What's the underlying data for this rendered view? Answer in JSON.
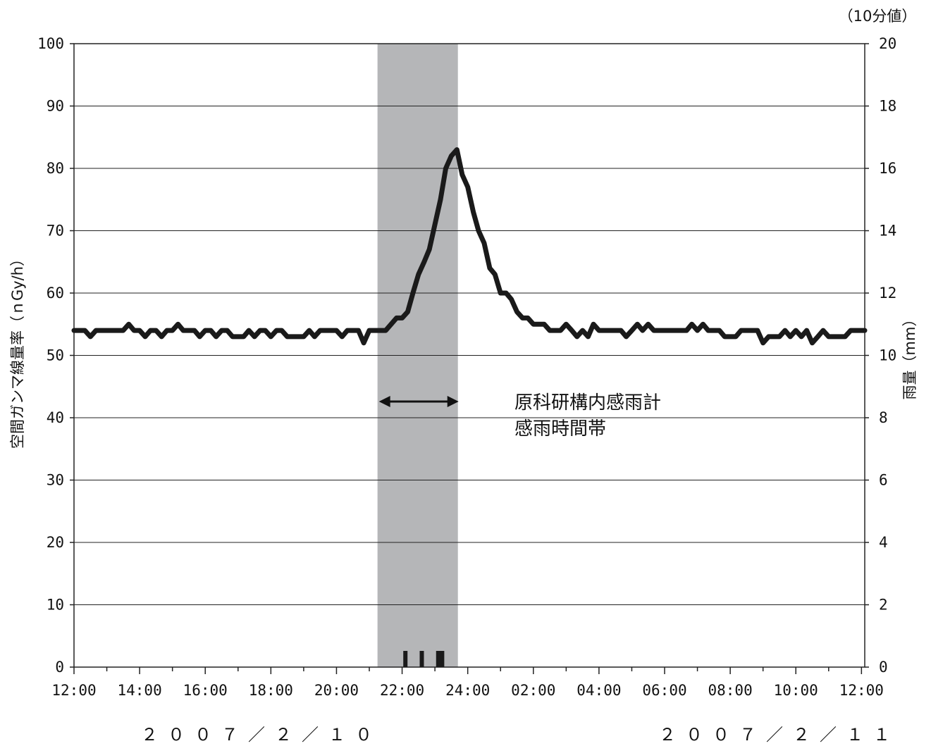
{
  "chart_data": {
    "type": "line",
    "left_axis": {
      "label": "空間ガンマ線量率（ｎGy/h）",
      "ylim": [
        0,
        100
      ],
      "ticks": [
        "0",
        "10",
        "20",
        "30",
        "40",
        "50",
        "60",
        "70",
        "80",
        "90",
        "100"
      ]
    },
    "right_axis": {
      "label": "雨量（mm）",
      "unit_note": "（10分値）",
      "ylim": [
        0,
        20
      ],
      "ticks": [
        "0",
        "2",
        "4",
        "6",
        "8",
        "10",
        "12",
        "14",
        "16",
        "18",
        "20"
      ]
    },
    "x_axis": {
      "range_hours": [
        12,
        36.1
      ],
      "ticks": [
        "12:00",
        "14:00",
        "16:00",
        "18:00",
        "20:00",
        "22:00",
        "24:00",
        "02:00",
        "04:00",
        "06:00",
        "08:00",
        "10:00",
        "12:00"
      ],
      "dates": [
        "２００７／２／１０",
        "２００７／２／１１"
      ]
    },
    "grid": true,
    "rain_period": {
      "start": 21.25,
      "end": 23.7
    },
    "annotation": [
      "原科研構内感雨計",
      "感雨時間帯"
    ],
    "series": [
      {
        "values": [
          [
            12.0,
            54
          ],
          [
            12.33,
            54
          ],
          [
            12.5,
            53
          ],
          [
            12.67,
            54
          ],
          [
            13.5,
            54
          ],
          [
            13.67,
            55
          ],
          [
            13.83,
            54
          ],
          [
            14.0,
            54
          ],
          [
            14.17,
            53
          ],
          [
            14.33,
            54
          ],
          [
            14.5,
            54
          ],
          [
            14.67,
            53
          ],
          [
            14.83,
            54
          ],
          [
            15.0,
            54
          ],
          [
            15.17,
            55
          ],
          [
            15.33,
            54
          ],
          [
            15.67,
            54
          ],
          [
            15.83,
            53
          ],
          [
            16.0,
            54
          ],
          [
            16.17,
            54
          ],
          [
            16.33,
            53
          ],
          [
            16.5,
            54
          ],
          [
            16.67,
            54
          ],
          [
            16.83,
            53
          ],
          [
            17.17,
            53
          ],
          [
            17.33,
            54
          ],
          [
            17.5,
            53
          ],
          [
            17.67,
            54
          ],
          [
            17.83,
            54
          ],
          [
            18.0,
            53
          ],
          [
            18.17,
            54
          ],
          [
            18.33,
            54
          ],
          [
            18.5,
            53
          ],
          [
            19.0,
            53
          ],
          [
            19.17,
            54
          ],
          [
            19.33,
            53
          ],
          [
            19.5,
            54
          ],
          [
            20.0,
            54
          ],
          [
            20.17,
            53
          ],
          [
            20.33,
            54
          ],
          [
            20.67,
            54
          ],
          [
            20.83,
            52
          ],
          [
            21.0,
            54
          ],
          [
            21.5,
            54
          ],
          [
            21.83,
            56
          ],
          [
            22.0,
            56
          ],
          [
            22.17,
            57
          ],
          [
            22.33,
            60
          ],
          [
            22.5,
            63
          ],
          [
            22.67,
            65
          ],
          [
            22.83,
            67
          ],
          [
            23.0,
            71
          ],
          [
            23.17,
            75
          ],
          [
            23.33,
            80
          ],
          [
            23.5,
            82
          ],
          [
            23.67,
            83
          ],
          [
            23.83,
            79
          ],
          [
            24.0,
            77
          ],
          [
            24.17,
            73
          ],
          [
            24.33,
            70
          ],
          [
            24.5,
            68
          ],
          [
            24.67,
            64
          ],
          [
            24.83,
            63
          ],
          [
            25.0,
            60
          ],
          [
            25.17,
            60
          ],
          [
            25.33,
            59
          ],
          [
            25.5,
            57
          ],
          [
            25.67,
            56
          ],
          [
            25.83,
            56
          ],
          [
            26.0,
            55
          ],
          [
            26.33,
            55
          ],
          [
            26.5,
            54
          ],
          [
            26.83,
            54
          ],
          [
            27.0,
            55
          ],
          [
            27.17,
            54
          ],
          [
            27.33,
            53
          ],
          [
            27.5,
            54
          ],
          [
            27.67,
            53
          ],
          [
            27.83,
            55
          ],
          [
            28.0,
            54
          ],
          [
            28.67,
            54
          ],
          [
            28.83,
            53
          ],
          [
            29.0,
            54
          ],
          [
            29.17,
            55
          ],
          [
            29.33,
            54
          ],
          [
            29.5,
            55
          ],
          [
            29.67,
            54
          ],
          [
            30.67,
            54
          ],
          [
            30.83,
            55
          ],
          [
            31.0,
            54
          ],
          [
            31.17,
            55
          ],
          [
            31.33,
            54
          ],
          [
            31.67,
            54
          ],
          [
            31.83,
            53
          ],
          [
            32.17,
            53
          ],
          [
            32.33,
            54
          ],
          [
            32.83,
            54
          ],
          [
            33.0,
            52
          ],
          [
            33.17,
            53
          ],
          [
            33.5,
            53
          ],
          [
            33.67,
            54
          ],
          [
            33.83,
            53
          ],
          [
            34.0,
            54
          ],
          [
            34.17,
            53
          ],
          [
            34.33,
            54
          ],
          [
            34.5,
            52
          ],
          [
            34.67,
            53
          ],
          [
            34.83,
            54
          ],
          [
            35.0,
            53
          ],
          [
            35.5,
            53
          ],
          [
            35.67,
            54
          ],
          [
            36.1,
            54
          ]
        ]
      }
    ],
    "rain_marks_x": [
      22.1,
      22.6,
      23.1,
      23.22
    ]
  }
}
